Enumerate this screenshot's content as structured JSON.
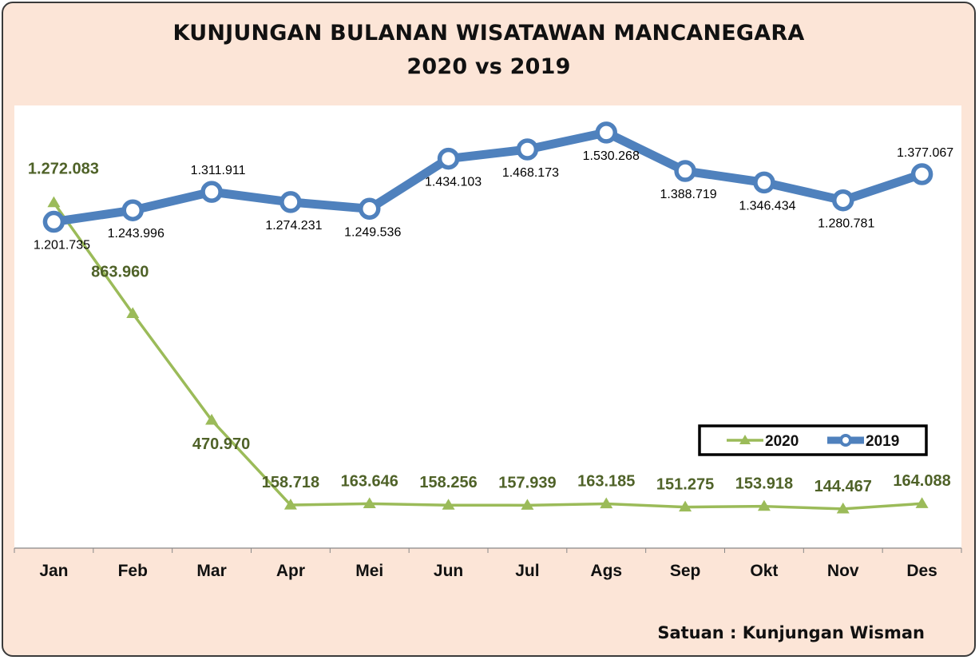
{
  "header": {
    "title_line1": "KUNJUNGAN BULANAN WISATAWAN MANCANEGARA",
    "title_line2": "2020  vs  2019"
  },
  "footer": {
    "unit_note": "Satuan : Kunjungan Wisman"
  },
  "chart_data": {
    "type": "line",
    "title": "KUNJUNGAN BULANAN WISATAWAN MANCANEGARA 2020 vs 2019",
    "categories": [
      "Jan",
      "Feb",
      "Mar",
      "Apr",
      "Mei",
      "Jun",
      "Jul",
      "Ags",
      "Sep",
      "Okt",
      "Nov",
      "Des"
    ],
    "ylim": [
      0,
      1630000
    ],
    "grid": false,
    "legend": "bottom-right",
    "series": [
      {
        "name": "2020",
        "color": "#9bbb59",
        "label_color": "#4f6228",
        "marker": "triangle",
        "values": [
          1272083,
          863960,
          470970,
          158718,
          163646,
          158256,
          157939,
          163185,
          151275,
          153918,
          144467,
          164088
        ],
        "labels": [
          "1.272.083",
          "863.960",
          "470.970",
          "158.718",
          "163.646",
          "158.256",
          "157.939",
          "163.185",
          "151.275",
          "153.918",
          "144.467",
          "164.088"
        ]
      },
      {
        "name": "2019",
        "color": "#4f81bd",
        "label_color": "#000000",
        "marker": "circle",
        "values": [
          1201735,
          1243996,
          1311911,
          1274231,
          1249536,
          1434103,
          1468173,
          1530268,
          1388719,
          1346434,
          1280781,
          1377067
        ],
        "labels": [
          "1.201.735",
          "1.243.996",
          "1.311.911",
          "1.274.231",
          "1.249.536",
          "1.434.103",
          "1.468.173",
          "1.530.268",
          "1.388.719",
          "1.346.434",
          "1.280.781",
          "1.377.067"
        ]
      }
    ]
  }
}
